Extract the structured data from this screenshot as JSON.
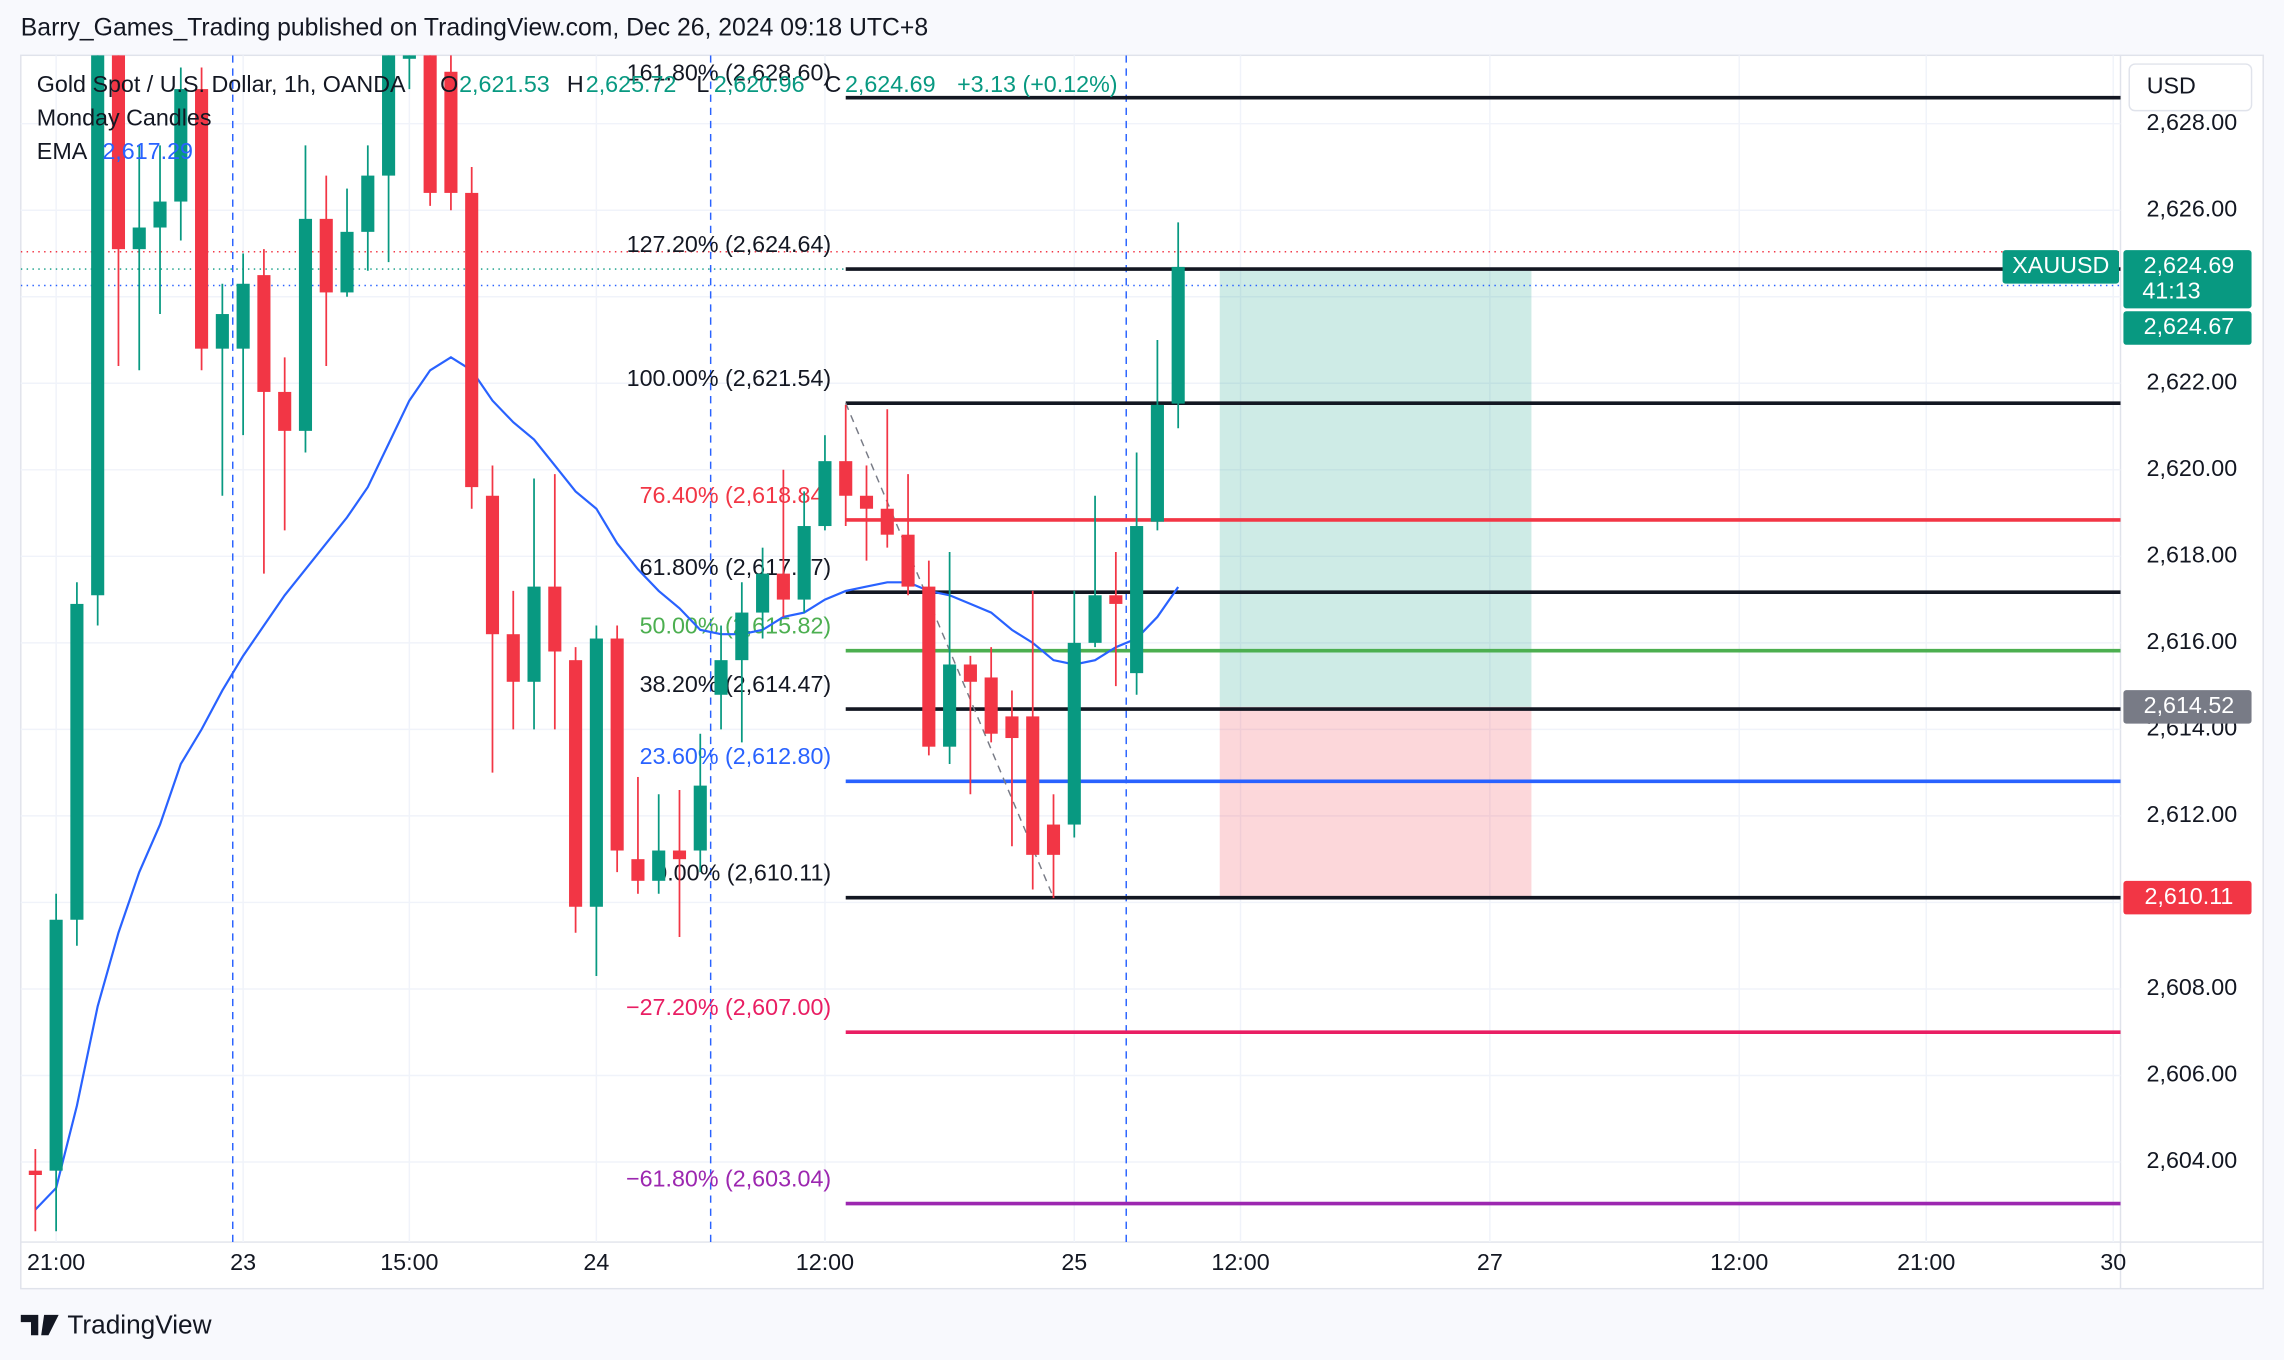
{
  "header": "Barry_Games_Trading published on TradingView.com, Dec 26, 2024 09:18 UTC+8",
  "footer": "TradingView",
  "chart_data": {
    "type": "candlestick",
    "title": "Gold Spot / U.S. Dollar, 1h, OANDA",
    "ohlc_legend": [
      {
        "key": "O",
        "value": 2621.53,
        "label": "2,621.53"
      },
      {
        "key": "H",
        "value": 2625.72,
        "label": "2,625.72"
      },
      {
        "key": "L",
        "value": 2620.96,
        "label": "2,620.96"
      },
      {
        "key": "C",
        "value": 2624.69,
        "label": "2,624.69"
      }
    ],
    "change": "+3.13 (+0.12%)",
    "indicator": "Monday Candles",
    "currency": "USD",
    "up_color": "#089981",
    "down_color": "#f23645",
    "candles": {
      "open": [
        2603.8,
        2603.8,
        2609.6,
        2617.1,
        2629.9,
        2625.1,
        2625.6,
        2626.2,
        2628.8,
        2622.8,
        2622.8,
        2624.5,
        2621.8,
        2620.9,
        2625.8,
        2624.1,
        2625.5,
        2626.8,
        2629.5,
        2629.9,
        2629.2,
        2626.4,
        2619.4,
        2616.2,
        2615.1,
        2617.3,
        2615.6,
        2609.9,
        2616.1,
        2611.0,
        2610.5,
        2611.2,
        2611.2,
        2614.8,
        2615.6,
        2616.7,
        2617.6,
        2617.0,
        2618.7,
        2620.2,
        2619.4,
        2619.1,
        2618.5,
        2617.3,
        2613.6,
        2615.5,
        2615.2,
        2614.3,
        2614.3,
        2611.8,
        2611.8,
        2616.0,
        2617.1,
        2615.3,
        2618.8,
        2621.53
      ],
      "high": [
        2604.3,
        2610.2,
        2617.4,
        2630.9,
        2630.9,
        2627.5,
        2627.5,
        2629.3,
        2629.3,
        2624.3,
        2625.0,
        2625.1,
        2622.6,
        2627.5,
        2626.8,
        2626.5,
        2627.5,
        2630.9,
        2630.9,
        2630.9,
        2629.9,
        2627.0,
        2620.1,
        2617.2,
        2619.8,
        2619.9,
        2615.9,
        2616.4,
        2616.4,
        2612.9,
        2612.5,
        2612.6,
        2613.9,
        2616.4,
        2617.4,
        2618.2,
        2620.0,
        2619.5,
        2620.8,
        2621.5,
        2620.1,
        2621.4,
        2619.9,
        2617.9,
        2618.1,
        2615.7,
        2615.9,
        2614.9,
        2617.2,
        2612.5,
        2617.2,
        2619.4,
        2618.1,
        2620.4,
        2623.0,
        2625.72
      ],
      "low": [
        2602.4,
        2602.4,
        2609.0,
        2616.4,
        2622.4,
        2622.3,
        2623.6,
        2625.3,
        2622.3,
        2619.4,
        2620.8,
        2617.6,
        2618.6,
        2620.4,
        2622.4,
        2624.0,
        2624.6,
        2624.8,
        2628.8,
        2626.1,
        2626.0,
        2619.1,
        2613.0,
        2614.0,
        2614.0,
        2614.0,
        2609.3,
        2608.3,
        2610.7,
        2610.2,
        2610.2,
        2609.2,
        2610.7,
        2614.0,
        2613.7,
        2616.1,
        2616.6,
        2616.7,
        2618.6,
        2618.7,
        2617.9,
        2618.2,
        2617.1,
        2613.4,
        2613.2,
        2612.5,
        2613.7,
        2611.3,
        2610.3,
        2610.1,
        2611.5,
        2615.9,
        2615.0,
        2614.8,
        2618.6,
        2620.96
      ],
      "close": [
        2603.7,
        2609.6,
        2616.9,
        2630.2,
        2625.1,
        2625.6,
        2626.2,
        2628.8,
        2622.8,
        2623.6,
        2624.3,
        2621.8,
        2620.9,
        2625.8,
        2624.1,
        2625.5,
        2626.8,
        2629.6,
        2630.2,
        2626.4,
        2626.4,
        2619.6,
        2616.2,
        2615.1,
        2617.3,
        2615.8,
        2609.9,
        2616.1,
        2611.2,
        2610.5,
        2611.2,
        2611.0,
        2612.7,
        2615.6,
        2616.7,
        2617.6,
        2617.0,
        2618.7,
        2620.2,
        2619.4,
        2619.1,
        2618.5,
        2617.3,
        2613.6,
        2615.5,
        2615.1,
        2613.9,
        2613.8,
        2611.1,
        2611.1,
        2616.0,
        2617.1,
        2616.9,
        2618.7,
        2621.5,
        2624.69
      ]
    },
    "ema": {
      "name": "EMA",
      "color": "#2962ff",
      "last_label": "2,617.29",
      "values": [
        2602.9,
        2603.4,
        2605.3,
        2607.6,
        2609.3,
        2610.7,
        2611.8,
        2613.2,
        2614.0,
        2614.9,
        2615.7,
        2616.4,
        2617.1,
        2617.7,
        2618.3,
        2618.9,
        2619.6,
        2620.6,
        2621.6,
        2622.3,
        2622.6,
        2622.3,
        2621.6,
        2621.1,
        2620.7,
        2620.1,
        2619.5,
        2619.1,
        2618.3,
        2617.7,
        2617.2,
        2616.8,
        2616.3,
        2616.2,
        2616.2,
        2616.3,
        2616.6,
        2616.7,
        2617.0,
        2617.2,
        2617.3,
        2617.4,
        2617.4,
        2617.2,
        2617.1,
        2616.9,
        2616.7,
        2616.3,
        2616.0,
        2615.6,
        2615.5,
        2615.6,
        2615.9,
        2616.1,
        2616.6,
        2617.29
      ]
    },
    "session_lines": [
      9.5,
      32.5,
      52.5
    ],
    "price_lines": [
      {
        "value": 2625.04,
        "color": "#f23645"
      },
      {
        "value": 2624.64,
        "color": "#089981"
      },
      {
        "value": 2624.26,
        "color": "#2962ff"
      }
    ],
    "fib": {
      "start": 39,
      "trend": {
        "x": [
          39,
          49
        ],
        "y": [
          2621.54,
          2610.11
        ]
      },
      "levels": [
        {
          "label": "161.80% (2,628.60)",
          "value": 2628.6,
          "color": "#131722"
        },
        {
          "label": "127.20% (2,624.64)",
          "value": 2624.64,
          "color": "#131722"
        },
        {
          "label": "100.00% (2,621.54)",
          "value": 2621.54,
          "color": "#131722"
        },
        {
          "label": "76.40% (2,618.84)",
          "value": 2618.84,
          "color": "#f23645"
        },
        {
          "label": "61.80% (2,617.17)",
          "value": 2617.17,
          "color": "#131722"
        },
        {
          "label": "50.00% (2,615.82)",
          "value": 2615.82,
          "color": "#4caf50"
        },
        {
          "label": "38.20% (2,614.47)",
          "value": 2614.47,
          "color": "#131722"
        },
        {
          "label": "23.60% (2,612.80)",
          "value": 2612.8,
          "color": "#2962ff"
        },
        {
          "label": "0.00% (2,610.11)",
          "value": 2610.11,
          "color": "#131722"
        },
        {
          "label": "−27.20% (2,607.00)",
          "value": 2607.0,
          "color": "#e91e63"
        },
        {
          "label": "−61.80% (2,603.04)",
          "value": 2603.04,
          "color": "#9c27b0"
        }
      ]
    },
    "position": {
      "start": 57,
      "end": 72,
      "target": 2624.6,
      "entry": 2614.52,
      "stop": 2610.11
    },
    "price_labels": [
      {
        "value": 2624.69,
        "label": "2,624.69",
        "color": "#089981",
        "countdown": "41:13",
        "tag": "XAUUSD"
      },
      {
        "value": 2624.67,
        "label": "2,624.67",
        "color": "#089981"
      },
      {
        "value": 2614.52,
        "label": "2,614.52",
        "color": "#787b86"
      },
      {
        "value": 2610.11,
        "label": "2,610.11",
        "color": "#f23645"
      }
    ],
    "xlim": [
      -0.7,
      100.35
    ],
    "xticks": [
      {
        "value": 1,
        "label": "21:00"
      },
      {
        "value": 10,
        "label": "23"
      },
      {
        "value": 18,
        "label": "15:00"
      },
      {
        "value": 27,
        "label": "24"
      },
      {
        "value": 38,
        "label": "12:00"
      },
      {
        "value": 50,
        "label": "25"
      },
      {
        "value": 58,
        "label": "12:00"
      },
      {
        "value": 70,
        "label": "27"
      },
      {
        "value": 82,
        "label": "12:00"
      },
      {
        "value": 91,
        "label": "21:00"
      },
      {
        "value": 100,
        "label": "30"
      }
    ],
    "ylim": [
      2602.15,
      2629.58
    ],
    "yticks": [
      {
        "value": 2604,
        "label": "2,604.00"
      },
      {
        "value": 2606,
        "label": "2,606.00"
      },
      {
        "value": 2608,
        "label": "2,608.00"
      },
      {
        "value": 2610,
        "label": "2,610.00"
      },
      {
        "value": 2612,
        "label": "2,612.00"
      },
      {
        "value": 2614,
        "label": "2,614.00"
      },
      {
        "value": 2616,
        "label": "2,616.00"
      },
      {
        "value": 2618,
        "label": "2,618.00"
      },
      {
        "value": 2620,
        "label": "2,620.00"
      },
      {
        "value": 2622,
        "label": "2,622.00"
      },
      {
        "value": 2624,
        "label": "2,624.00"
      },
      {
        "value": 2626,
        "label": "2,626.00"
      },
      {
        "value": 2628,
        "label": "2,628.00"
      }
    ],
    "grid": true
  }
}
